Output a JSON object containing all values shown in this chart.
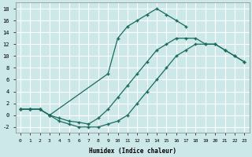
{
  "xlabel": "Humidex (Indice chaleur)",
  "background_color": "#cce8e8",
  "grid_color": "#b8d8d8",
  "line_color": "#1a6b5e",
  "xlim": [
    -0.5,
    23.5
  ],
  "ylim": [
    -3,
    19
  ],
  "xticks": [
    0,
    1,
    2,
    3,
    4,
    5,
    6,
    7,
    8,
    9,
    10,
    11,
    12,
    13,
    14,
    15,
    16,
    17,
    18,
    19,
    20,
    21,
    22,
    23
  ],
  "yticks": [
    -2,
    0,
    2,
    4,
    6,
    8,
    10,
    12,
    14,
    16,
    18
  ],
  "line1_x": [
    0,
    1,
    2,
    3,
    9,
    10,
    11,
    12,
    13,
    14,
    15,
    16,
    17
  ],
  "line1_y": [
    1,
    1,
    1,
    0,
    7,
    13,
    15,
    16,
    17,
    18,
    17,
    16,
    15
  ],
  "line2_x": [
    0,
    1,
    2,
    3,
    4,
    5,
    6,
    7,
    8,
    9,
    10,
    11,
    12,
    13,
    14,
    15,
    16,
    17,
    18,
    19,
    20,
    21,
    22,
    23
  ],
  "line2_y": [
    1,
    1,
    1,
    0,
    -0.5,
    -1,
    -1.2,
    -1.5,
    -0.5,
    1,
    3,
    5,
    7,
    9,
    11,
    12,
    13,
    13,
    13,
    12,
    12,
    11,
    10,
    9
  ],
  "line3_x": [
    0,
    1,
    2,
    3,
    4,
    5,
    6,
    7,
    8,
    9,
    10,
    11,
    12,
    13,
    14,
    15,
    16,
    17,
    18,
    19,
    20,
    21,
    22,
    23
  ],
  "line3_y": [
    1,
    1,
    1,
    0,
    -1,
    -1.5,
    -2,
    -2,
    -2,
    -1.5,
    -1,
    0,
    2,
    4,
    6,
    8,
    10,
    11,
    12,
    12,
    12,
    11,
    10,
    9
  ]
}
